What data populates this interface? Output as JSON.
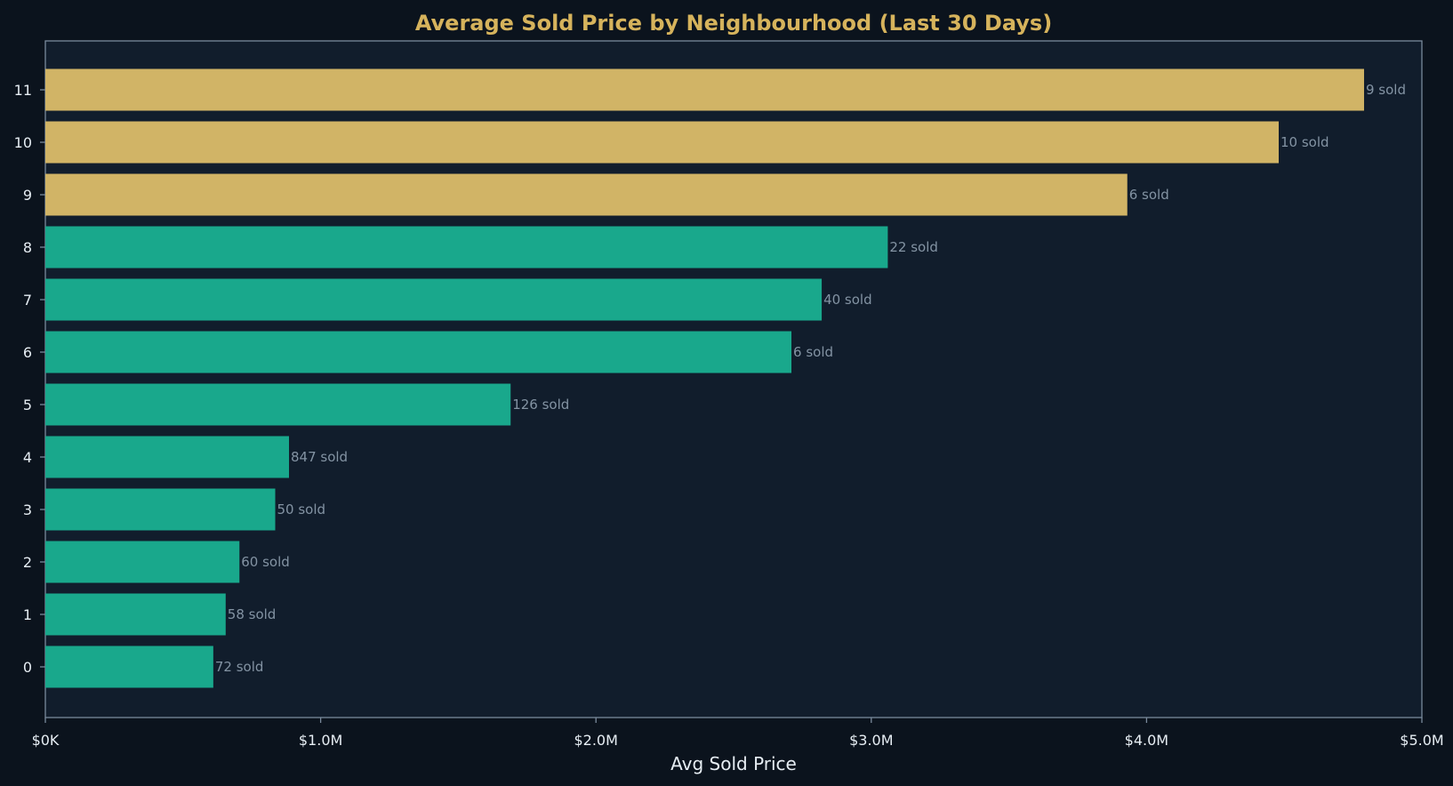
{
  "chart_data": {
    "type": "bar",
    "orientation": "horizontal",
    "title": "Average Sold Price by Neighbourhood (Last 30 Days)",
    "xlabel": "Avg Sold Price",
    "ylabel": "",
    "xlim": [
      0,
      5000000
    ],
    "x_ticks": [
      {
        "value": 0,
        "label": "$0K"
      },
      {
        "value": 1000000,
        "label": "$1.0M"
      },
      {
        "value": 2000000,
        "label": "$2.0M"
      },
      {
        "value": 3000000,
        "label": "$3.0M"
      },
      {
        "value": 4000000,
        "label": "$4.0M"
      },
      {
        "value": 5000000,
        "label": "$5.0M"
      }
    ],
    "categories": [
      "0",
      "1",
      "2",
      "3",
      "4",
      "5",
      "6",
      "7",
      "8",
      "9",
      "10",
      "11"
    ],
    "values": [
      610000,
      655000,
      705000,
      835000,
      885000,
      1690000,
      2710000,
      2820000,
      3060000,
      3930000,
      4480000,
      4790000
    ],
    "data_labels": [
      "72 sold",
      "58 sold",
      "60 sold",
      "50 sold",
      "847 sold",
      "126 sold",
      "6 sold",
      "40 sold",
      "22 sold",
      "6 sold",
      "10 sold",
      "9 sold"
    ],
    "highlight": [
      false,
      false,
      false,
      false,
      false,
      false,
      false,
      false,
      false,
      true,
      true,
      true
    ],
    "grid": false,
    "legend": "none"
  },
  "colors": {
    "figure_background": "#0b131d",
    "plot_background": "#111d2c",
    "plot_border": "#7a8a9c",
    "title": "#d6b35c",
    "bar_default": "#19a88c",
    "bar_highlight": "#d1b466",
    "tick_text": "#e6edf3",
    "axis_label": "#e6edf3",
    "data_label": "#8393a3"
  }
}
